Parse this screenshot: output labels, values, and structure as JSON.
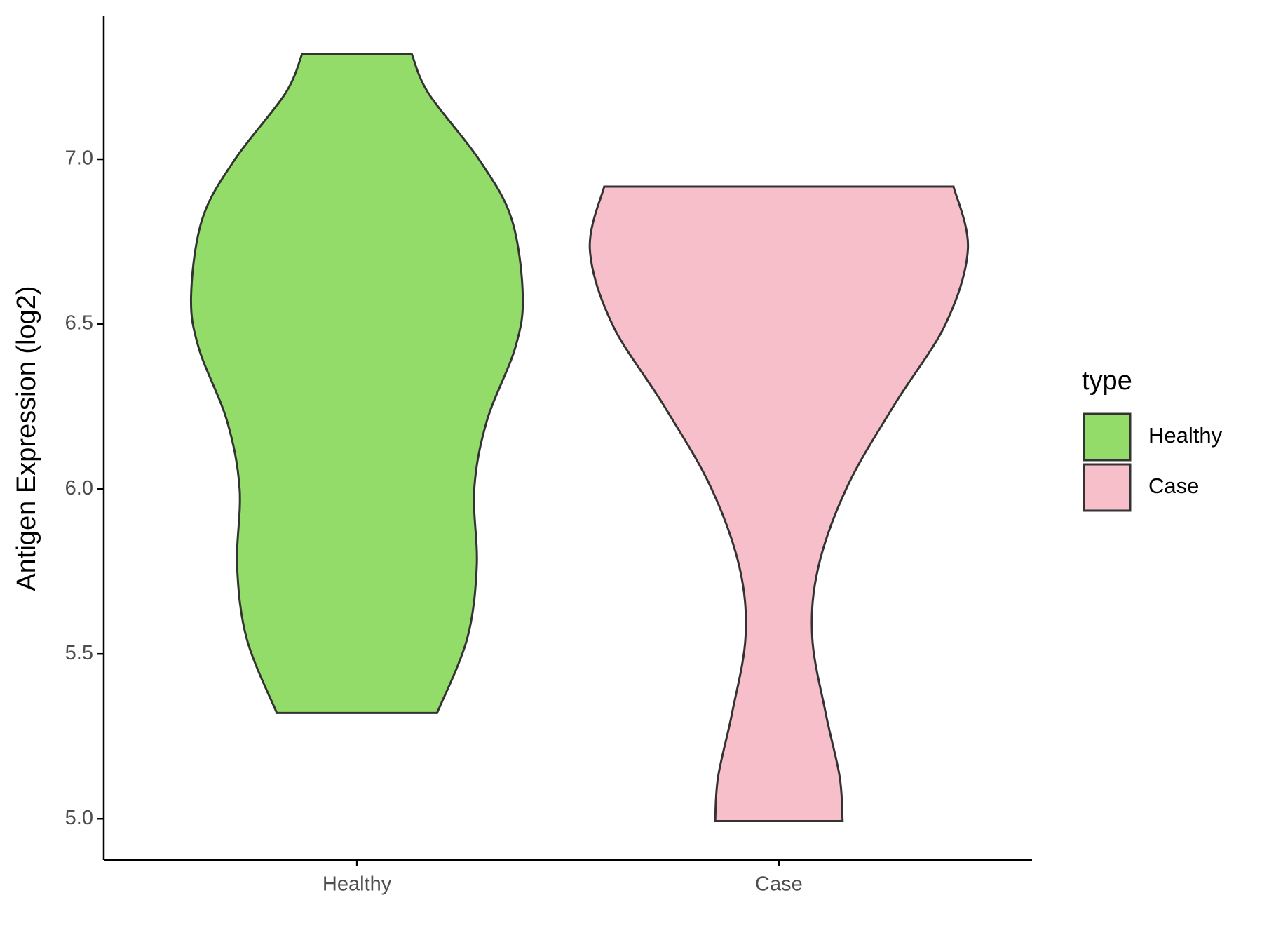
{
  "chart_data": {
    "type": "violin",
    "y_label": "Antigen Expression (log2)",
    "legend_title": "type",
    "categories": [
      "Healthy",
      "Case"
    ],
    "series": [
      {
        "name": "Healthy",
        "color": "#93dc6a",
        "y": [
          7.319,
          7.199,
          7.0,
          6.821,
          6.588,
          6.428,
          6.207,
          6.0,
          5.766,
          5.545,
          5.321
        ],
        "width": [
          0.13,
          0.17,
          0.289,
          0.366,
          0.393,
          0.375,
          0.308,
          0.278,
          0.284,
          0.261,
          0.19
        ]
      },
      {
        "name": "Case",
        "color": "#f7bfca",
        "y": [
          6.917,
          6.728,
          6.5,
          6.256,
          6.01,
          5.766,
          5.552,
          5.32,
          5.128,
          4.993
        ],
        "width": [
          0.414,
          0.448,
          0.395,
          0.274,
          0.163,
          0.094,
          0.079,
          0.111,
          0.144,
          0.151
        ]
      }
    ],
    "ylim": [
      4.875,
      7.434
    ],
    "yticks": [
      {
        "value": 5,
        "label": "5.0"
      },
      5.5,
      {
        "value": 6,
        "label": "6.0"
      },
      6.5,
      {
        "value": 7,
        "label": "7.0"
      }
    ]
  }
}
